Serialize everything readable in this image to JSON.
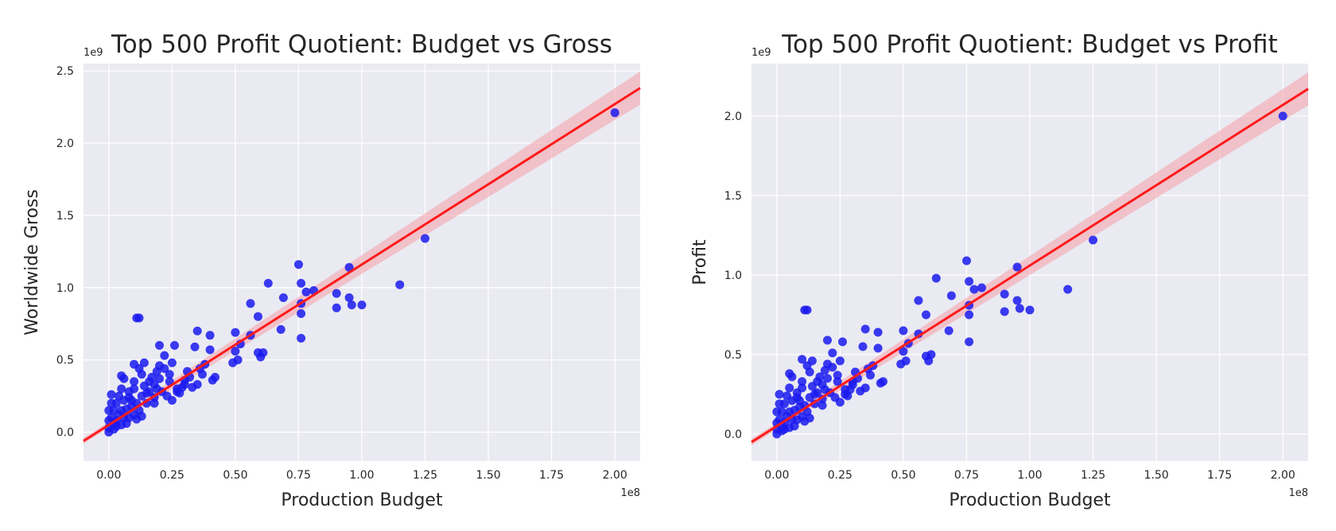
{
  "colors": {
    "points": "#1a1af0",
    "regression_line": "#ff1a1a",
    "confidence_band": "#f4a5ad",
    "plot_background": "#eaeaf2",
    "grid": "#ffffff"
  },
  "chart_data": [
    {
      "type": "scatter",
      "title": "Top 500 Profit Quotient: Budget vs Gross",
      "xlabel": "Production Budget",
      "ylabel": "Worldwide Gross",
      "x_scale_label": "1e8",
      "y_scale_label": "1e9",
      "xlim": [
        -0.1,
        2.1
      ],
      "ylim": [
        -0.2,
        2.55
      ],
      "x_ticks": [
        0.0,
        0.25,
        0.5,
        0.75,
        1.0,
        1.25,
        1.5,
        1.75,
        2.0
      ],
      "x_tick_labels": [
        "0.00",
        "0.25",
        "0.50",
        "0.75",
        "1.00",
        "1.25",
        "1.50",
        "1.75",
        "2.00"
      ],
      "y_ticks": [
        0.0,
        0.5,
        1.0,
        1.5,
        2.0,
        2.5
      ],
      "y_tick_labels": [
        "0.0",
        "0.5",
        "1.0",
        "1.5",
        "2.0",
        "2.5"
      ],
      "grid": true,
      "regression": {
        "slope": 1.11,
        "intercept": 0.05,
        "ci_halfwidth_at_x0": 0.02,
        "ci_halfwidth_at_xmax": 0.11
      },
      "points": [
        [
          2.0,
          2.21
        ],
        [
          1.25,
          1.34
        ],
        [
          1.15,
          1.02
        ],
        [
          1.0,
          0.88
        ],
        [
          0.95,
          1.14
        ],
        [
          0.95,
          0.93
        ],
        [
          0.96,
          0.88
        ],
        [
          0.9,
          0.96
        ],
        [
          0.9,
          0.86
        ],
        [
          0.75,
          1.16
        ],
        [
          0.76,
          1.03
        ],
        [
          0.78,
          0.97
        ],
        [
          0.81,
          0.98
        ],
        [
          0.76,
          0.89
        ],
        [
          0.76,
          0.82
        ],
        [
          0.76,
          0.65
        ],
        [
          0.69,
          0.93
        ],
        [
          0.68,
          0.71
        ],
        [
          0.63,
          1.03
        ],
        [
          0.56,
          0.89
        ],
        [
          0.59,
          0.8
        ],
        [
          0.56,
          0.67
        ],
        [
          0.61,
          0.55
        ],
        [
          0.59,
          0.55
        ],
        [
          0.6,
          0.52
        ],
        [
          0.52,
          0.61
        ],
        [
          0.5,
          0.69
        ],
        [
          0.5,
          0.56
        ],
        [
          0.49,
          0.48
        ],
        [
          0.51,
          0.5
        ],
        [
          0.4,
          0.67
        ],
        [
          0.4,
          0.57
        ],
        [
          0.35,
          0.7
        ],
        [
          0.34,
          0.59
        ],
        [
          0.38,
          0.47
        ],
        [
          0.42,
          0.38
        ],
        [
          0.41,
          0.36
        ],
        [
          0.36,
          0.44
        ],
        [
          0.35,
          0.33
        ],
        [
          0.33,
          0.31
        ],
        [
          0.3,
          0.36
        ],
        [
          0.29,
          0.31
        ],
        [
          0.27,
          0.28
        ],
        [
          0.26,
          0.6
        ],
        [
          0.25,
          0.48
        ],
        [
          0.24,
          0.4
        ],
        [
          0.22,
          0.53
        ],
        [
          0.22,
          0.44
        ],
        [
          0.2,
          0.6
        ],
        [
          0.2,
          0.46
        ],
        [
          0.2,
          0.37
        ],
        [
          0.19,
          0.3
        ],
        [
          0.18,
          0.2
        ],
        [
          0.16,
          0.35
        ],
        [
          0.15,
          0.27
        ],
        [
          0.14,
          0.48
        ],
        [
          0.13,
          0.4
        ],
        [
          0.12,
          0.44
        ],
        [
          0.11,
          0.79
        ],
        [
          0.12,
          0.79
        ],
        [
          0.1,
          0.47
        ],
        [
          0.1,
          0.3
        ],
        [
          0.09,
          0.18
        ],
        [
          0.08,
          0.24
        ],
        [
          0.06,
          0.37
        ],
        [
          0.05,
          0.39
        ],
        [
          0.05,
          0.3
        ],
        [
          0.04,
          0.25
        ],
        [
          0.03,
          0.2
        ],
        [
          0.02,
          0.15
        ],
        [
          0.01,
          0.26
        ],
        [
          0.01,
          0.2
        ],
        [
          0.0,
          0.15
        ],
        [
          0.0,
          0.08
        ],
        [
          0.0,
          0.03
        ],
        [
          0.0,
          0.0
        ],
        [
          0.02,
          0.02
        ],
        [
          0.05,
          0.05
        ],
        [
          0.08,
          0.1
        ],
        [
          0.1,
          0.12
        ],
        [
          0.12,
          0.15
        ],
        [
          0.15,
          0.2
        ],
        [
          0.18,
          0.24
        ],
        [
          0.23,
          0.25
        ],
        [
          0.25,
          0.22
        ],
        [
          0.28,
          0.27
        ],
        [
          0.3,
          0.33
        ],
        [
          0.32,
          0.38
        ],
        [
          0.37,
          0.4
        ],
        [
          0.03,
          0.08
        ],
        [
          0.06,
          0.1
        ],
        [
          0.07,
          0.16
        ],
        [
          0.09,
          0.22
        ],
        [
          0.11,
          0.2
        ],
        [
          0.13,
          0.25
        ],
        [
          0.14,
          0.32
        ],
        [
          0.16,
          0.28
        ],
        [
          0.17,
          0.38
        ],
        [
          0.18,
          0.33
        ],
        [
          0.21,
          0.28
        ],
        [
          0.04,
          0.12
        ],
        [
          0.06,
          0.22
        ],
        [
          0.02,
          0.06
        ],
        [
          0.01,
          0.1
        ],
        [
          0.03,
          0.04
        ],
        [
          0.07,
          0.06
        ],
        [
          0.11,
          0.09
        ],
        [
          0.13,
          0.11
        ],
        [
          0.19,
          0.42
        ],
        [
          0.24,
          0.35
        ],
        [
          0.27,
          0.3
        ],
        [
          0.31,
          0.42
        ],
        [
          0.05,
          0.15
        ],
        [
          0.08,
          0.28
        ],
        [
          0.1,
          0.35
        ]
      ]
    },
    {
      "type": "scatter",
      "title": "Top 500 Profit Quotient: Budget vs Profit",
      "xlabel": "Production Budget",
      "ylabel": "Profit",
      "x_scale_label": "1e8",
      "y_scale_label": "1e9",
      "xlim": [
        -0.1,
        2.1
      ],
      "ylim": [
        -0.17,
        2.33
      ],
      "x_ticks": [
        0.0,
        0.25,
        0.5,
        0.75,
        1.0,
        1.25,
        1.5,
        1.75,
        2.0
      ],
      "x_tick_labels": [
        "0.00",
        "0.25",
        "0.50",
        "0.75",
        "1.00",
        "1.25",
        "1.50",
        "1.75",
        "2.00"
      ],
      "y_ticks": [
        0.0,
        0.5,
        1.0,
        1.5,
        2.0
      ],
      "y_tick_labels": [
        "0.0",
        "0.5",
        "1.0",
        "1.5",
        "2.0"
      ],
      "grid": true,
      "regression": {
        "slope": 1.01,
        "intercept": 0.05,
        "ci_halfwidth_at_x0": 0.02,
        "ci_halfwidth_at_xmax": 0.1
      },
      "points": [
        [
          2.0,
          2.0
        ],
        [
          1.25,
          1.22
        ],
        [
          1.15,
          0.91
        ],
        [
          1.0,
          0.78
        ],
        [
          0.95,
          1.05
        ],
        [
          0.95,
          0.84
        ],
        [
          0.96,
          0.79
        ],
        [
          0.9,
          0.88
        ],
        [
          0.9,
          0.77
        ],
        [
          0.75,
          1.09
        ],
        [
          0.76,
          0.96
        ],
        [
          0.78,
          0.91
        ],
        [
          0.81,
          0.92
        ],
        [
          0.76,
          0.81
        ],
        [
          0.76,
          0.75
        ],
        [
          0.76,
          0.58
        ],
        [
          0.69,
          0.87
        ],
        [
          0.68,
          0.65
        ],
        [
          0.63,
          0.98
        ],
        [
          0.56,
          0.84
        ],
        [
          0.59,
          0.75
        ],
        [
          0.56,
          0.63
        ],
        [
          0.61,
          0.5
        ],
        [
          0.59,
          0.49
        ],
        [
          0.6,
          0.46
        ],
        [
          0.52,
          0.57
        ],
        [
          0.5,
          0.65
        ],
        [
          0.5,
          0.52
        ],
        [
          0.49,
          0.44
        ],
        [
          0.51,
          0.46
        ],
        [
          0.4,
          0.64
        ],
        [
          0.4,
          0.54
        ],
        [
          0.35,
          0.66
        ],
        [
          0.34,
          0.55
        ],
        [
          0.38,
          0.43
        ],
        [
          0.42,
          0.33
        ],
        [
          0.41,
          0.32
        ],
        [
          0.36,
          0.41
        ],
        [
          0.35,
          0.29
        ],
        [
          0.33,
          0.27
        ],
        [
          0.3,
          0.33
        ],
        [
          0.29,
          0.28
        ],
        [
          0.27,
          0.25
        ],
        [
          0.26,
          0.58
        ],
        [
          0.25,
          0.46
        ],
        [
          0.24,
          0.37
        ],
        [
          0.22,
          0.51
        ],
        [
          0.22,
          0.42
        ],
        [
          0.2,
          0.59
        ],
        [
          0.2,
          0.44
        ],
        [
          0.2,
          0.35
        ],
        [
          0.19,
          0.28
        ],
        [
          0.18,
          0.18
        ],
        [
          0.16,
          0.33
        ],
        [
          0.15,
          0.25
        ],
        [
          0.14,
          0.46
        ],
        [
          0.13,
          0.39
        ],
        [
          0.12,
          0.43
        ],
        [
          0.11,
          0.78
        ],
        [
          0.12,
          0.78
        ],
        [
          0.1,
          0.47
        ],
        [
          0.1,
          0.29
        ],
        [
          0.09,
          0.17
        ],
        [
          0.08,
          0.23
        ],
        [
          0.06,
          0.36
        ],
        [
          0.05,
          0.38
        ],
        [
          0.05,
          0.29
        ],
        [
          0.04,
          0.24
        ],
        [
          0.03,
          0.19
        ],
        [
          0.02,
          0.14
        ],
        [
          0.01,
          0.25
        ],
        [
          0.01,
          0.19
        ],
        [
          0.0,
          0.14
        ],
        [
          0.0,
          0.07
        ],
        [
          0.0,
          0.03
        ],
        [
          0.0,
          0.0
        ],
        [
          0.02,
          0.02
        ],
        [
          0.05,
          0.04
        ],
        [
          0.08,
          0.09
        ],
        [
          0.1,
          0.11
        ],
        [
          0.12,
          0.14
        ],
        [
          0.15,
          0.19
        ],
        [
          0.18,
          0.22
        ],
        [
          0.23,
          0.23
        ],
        [
          0.25,
          0.2
        ],
        [
          0.28,
          0.24
        ],
        [
          0.3,
          0.31
        ],
        [
          0.32,
          0.35
        ],
        [
          0.37,
          0.37
        ],
        [
          0.03,
          0.07
        ],
        [
          0.06,
          0.09
        ],
        [
          0.07,
          0.15
        ],
        [
          0.09,
          0.21
        ],
        [
          0.11,
          0.18
        ],
        [
          0.13,
          0.23
        ],
        [
          0.14,
          0.3
        ],
        [
          0.16,
          0.26
        ],
        [
          0.17,
          0.36
        ],
        [
          0.18,
          0.31
        ],
        [
          0.21,
          0.26
        ],
        [
          0.04,
          0.11
        ],
        [
          0.06,
          0.21
        ],
        [
          0.02,
          0.05
        ],
        [
          0.01,
          0.09
        ],
        [
          0.03,
          0.03
        ],
        [
          0.07,
          0.05
        ],
        [
          0.11,
          0.08
        ],
        [
          0.13,
          0.1
        ],
        [
          0.19,
          0.4
        ],
        [
          0.24,
          0.33
        ],
        [
          0.27,
          0.28
        ],
        [
          0.31,
          0.39
        ],
        [
          0.05,
          0.14
        ],
        [
          0.08,
          0.26
        ],
        [
          0.1,
          0.33
        ]
      ]
    }
  ]
}
